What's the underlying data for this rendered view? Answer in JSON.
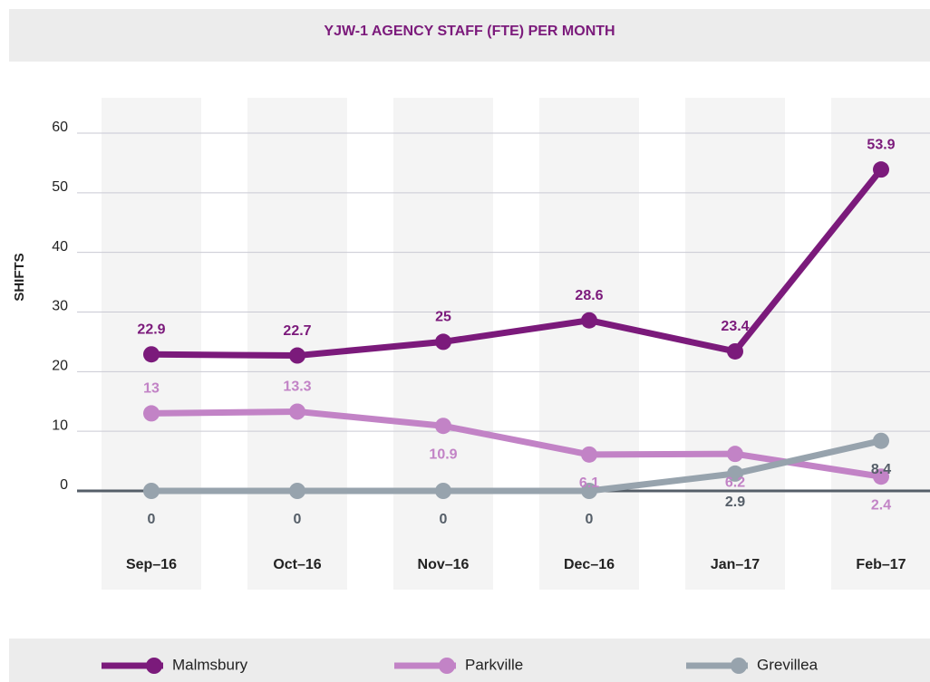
{
  "chart_data": {
    "type": "line",
    "title": "YJW-1 AGENCY STAFF (FTE) PER MONTH",
    "y_label": "SHIFTS",
    "categories": [
      "Sep–16",
      "Oct–16",
      "Nov–16",
      "Dec–16",
      "Jan–17",
      "Feb–17"
    ],
    "series": [
      {
        "name": "Malmsbury",
        "color": "#7b1a7b",
        "values": [
          22.9,
          22.7,
          25,
          28.6,
          23.4,
          53.9
        ]
      },
      {
        "name": "Parkville",
        "color": "#c283c6",
        "values": [
          13,
          13.3,
          10.9,
          6.1,
          6.2,
          2.4
        ]
      },
      {
        "name": "Grevillea",
        "color": "#97a3ad",
        "values": [
          0,
          0,
          0,
          0,
          2.9,
          8.4
        ]
      }
    ],
    "ylim": [
      0,
      60
    ],
    "yticks": [
      0,
      10,
      20,
      30,
      40,
      50,
      60
    ],
    "grid": true,
    "legend": "bottom"
  }
}
